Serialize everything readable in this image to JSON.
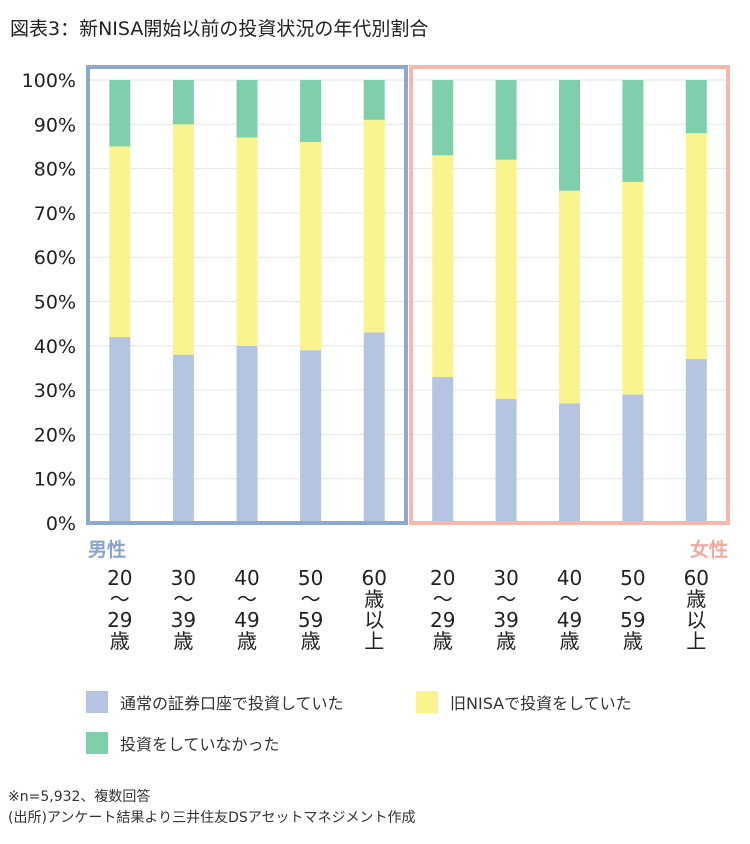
{
  "title": "図表3：新NISA開始以前の投資状況の年代別割合",
  "chart_data": {
    "type": "bar",
    "stacked": true,
    "y_ticks": [
      "0%",
      "10%",
      "20%",
      "30%",
      "40%",
      "50%",
      "60%",
      "70%",
      "80%",
      "90%",
      "100%"
    ],
    "ylim": [
      0,
      100
    ],
    "grid": true,
    "groups": [
      {
        "label": "男性",
        "color": "#8fa8d2",
        "label_color": "#8aa3cf",
        "categories": [
          [
            "20",
            "〜",
            "29",
            "歳"
          ],
          [
            "30",
            "〜",
            "39",
            "歳"
          ],
          [
            "40",
            "〜",
            "49",
            "歳"
          ],
          [
            "50",
            "〜",
            "59",
            "歳"
          ],
          [
            "60",
            "歳",
            "以",
            "上"
          ]
        ]
      },
      {
        "label": "女性",
        "color": "#f6b8ad",
        "label_color": "#f4a99c",
        "categories": [
          [
            "20",
            "〜",
            "29",
            "歳"
          ],
          [
            "30",
            "〜",
            "39",
            "歳"
          ],
          [
            "40",
            "〜",
            "49",
            "歳"
          ],
          [
            "50",
            "〜",
            "59",
            "歳"
          ],
          [
            "60",
            "歳",
            "以",
            "上"
          ]
        ]
      }
    ],
    "series": [
      {
        "name": "通常の証券口座で投資していた",
        "color": "#b5c4e0",
        "values": [
          42,
          38,
          40,
          39,
          43,
          33,
          28,
          27,
          29,
          37
        ]
      },
      {
        "name": "旧NISAで投資をしていた",
        "color": "#f9f48d",
        "values": [
          43,
          52,
          47,
          47,
          48,
          50,
          54,
          48,
          48,
          51
        ]
      },
      {
        "name": "投資をしていなかった",
        "color": "#7fcfab",
        "values": [
          15,
          10,
          13,
          14,
          9,
          17,
          18,
          25,
          23,
          12
        ]
      }
    ],
    "legend_position": "bottom"
  },
  "notes": [
    "※n=5,932、複数回答",
    "(出所)アンケート結果より三井住友DSアセットマネジメント作成"
  ]
}
